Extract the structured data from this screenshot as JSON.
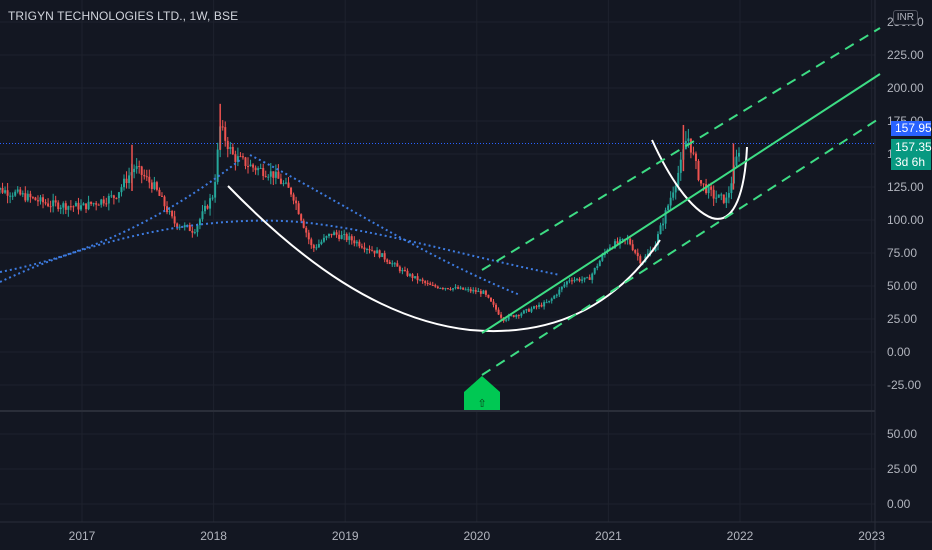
{
  "header": {
    "symbol_title": "TRIGYN TECHNOLOGIES LTD., 1W, BSE",
    "currency": "INR"
  },
  "price_axis": {
    "ticks": [
      "250.00",
      "225.00",
      "200.00",
      "175.00",
      "150.00",
      "125.00",
      "100.00",
      "75.00",
      "50.00",
      "25.00",
      "0.00",
      "-25.00"
    ]
  },
  "indicator_axis": {
    "ticks": [
      "50.00",
      "25.00",
      "0.00"
    ]
  },
  "time_axis": {
    "ticks": [
      "2017",
      "2018",
      "2019",
      "2020",
      "2021",
      "2022",
      "2023"
    ]
  },
  "price_tags": {
    "last_price": "157.95",
    "close_price": "157.35",
    "countdown": "3d 6h"
  },
  "signal": {
    "label": "⇧"
  },
  "colors": {
    "background": "#131722",
    "up": "#ef5350",
    "down": "#26a69a",
    "channel": "#3ddc84",
    "trendline_dotted": "#3d7be0",
    "arc": "#ffffff",
    "price_line": "#2962ff",
    "tag_blue": "#2962ff",
    "tag_green": "#089981"
  },
  "chart_data": {
    "type": "line",
    "title": "TRIGYN TECHNOLOGIES LTD., 1W, BSE",
    "xlabel": "",
    "ylabel": "",
    "y_range": [
      -35,
      255
    ],
    "series": [
      {
        "values": [
          {
            "x": 2016.3,
            "y": 125
          },
          {
            "x": 2016.5,
            "y": 120
          },
          {
            "x": 2016.75,
            "y": 112
          },
          {
            "x": 2017.0,
            "y": 110
          },
          {
            "x": 2017.25,
            "y": 118
          },
          {
            "x": 2017.4,
            "y": 140
          },
          {
            "x": 2017.55,
            "y": 125
          },
          {
            "x": 2017.7,
            "y": 98
          },
          {
            "x": 2017.85,
            "y": 92
          },
          {
            "x": 2018.0,
            "y": 120
          },
          {
            "x": 2018.05,
            "y": 170
          },
          {
            "x": 2018.15,
            "y": 148
          },
          {
            "x": 2018.3,
            "y": 140
          },
          {
            "x": 2018.45,
            "y": 135
          },
          {
            "x": 2018.6,
            "y": 120
          },
          {
            "x": 2018.75,
            "y": 78
          },
          {
            "x": 2018.9,
            "y": 90
          },
          {
            "x": 2019.05,
            "y": 85
          },
          {
            "x": 2019.25,
            "y": 75
          },
          {
            "x": 2019.45,
            "y": 60
          },
          {
            "x": 2019.65,
            "y": 50
          },
          {
            "x": 2019.85,
            "y": 48
          },
          {
            "x": 2020.05,
            "y": 45
          },
          {
            "x": 2020.2,
            "y": 25
          },
          {
            "x": 2020.35,
            "y": 30
          },
          {
            "x": 2020.55,
            "y": 38
          },
          {
            "x": 2020.7,
            "y": 55
          },
          {
            "x": 2020.85,
            "y": 55
          },
          {
            "x": 2021.0,
            "y": 80
          },
          {
            "x": 2021.15,
            "y": 85
          },
          {
            "x": 2021.25,
            "y": 68
          },
          {
            "x": 2021.35,
            "y": 80
          },
          {
            "x": 2021.45,
            "y": 110
          },
          {
            "x": 2021.55,
            "y": 142
          },
          {
            "x": 2021.6,
            "y": 165
          },
          {
            "x": 2021.7,
            "y": 128
          },
          {
            "x": 2021.8,
            "y": 118
          },
          {
            "x": 2021.9,
            "y": 115
          },
          {
            "x": 2022.0,
            "y": 157.35
          }
        ]
      }
    ],
    "indicator_ylim": [
      -6,
      70
    ]
  }
}
